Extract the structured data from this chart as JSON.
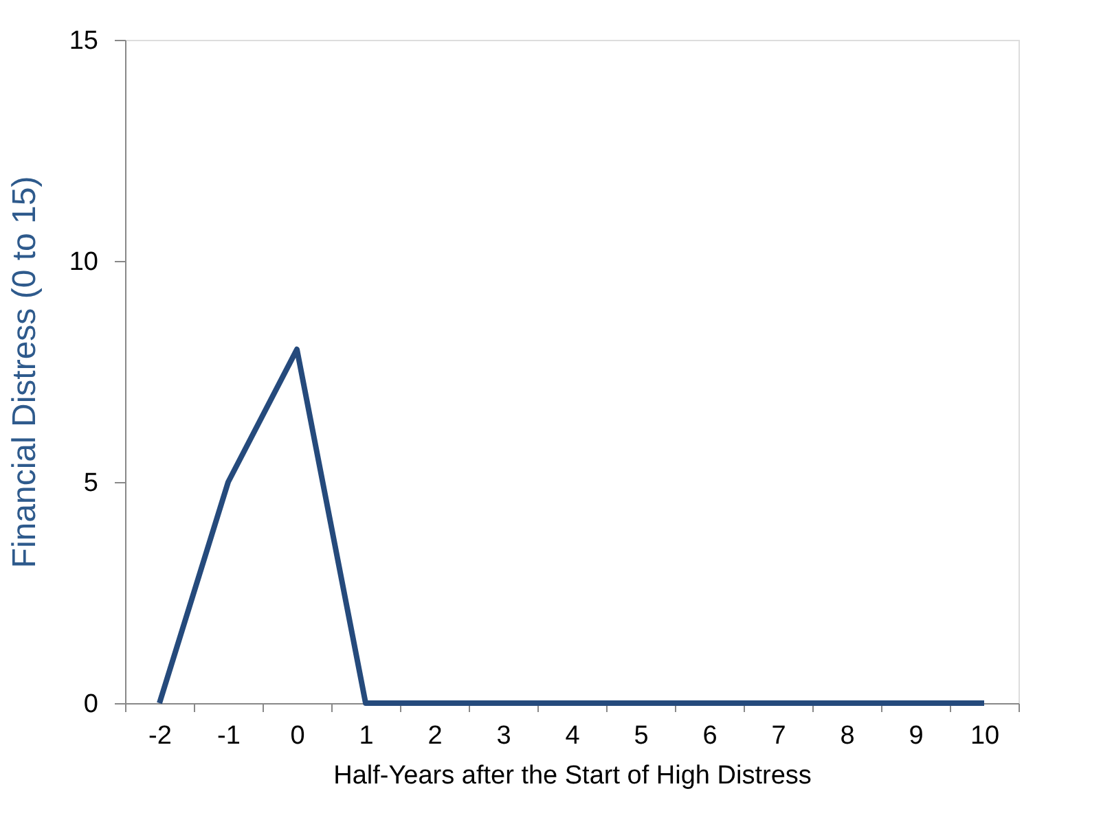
{
  "chart_data": {
    "type": "line",
    "xlabel": "Half-Years after the Start of High Distress",
    "ylabel": "Financial Distress (0 to 15)",
    "categories": [
      "-2",
      "-1",
      "0",
      "1",
      "2",
      "3",
      "4",
      "5",
      "6",
      "7",
      "8",
      "9",
      "10"
    ],
    "series": [
      {
        "color": "#254a7c",
        "values": [
          0,
          5,
          8,
          0,
          0,
          0,
          0,
          0,
          0,
          0,
          0,
          0,
          0
        ]
      }
    ],
    "ylim": [
      0,
      15
    ],
    "yticks": [
      0,
      5,
      10,
      15
    ],
    "grid": false,
    "legend": false,
    "marker": "none",
    "line_style": "solid"
  }
}
